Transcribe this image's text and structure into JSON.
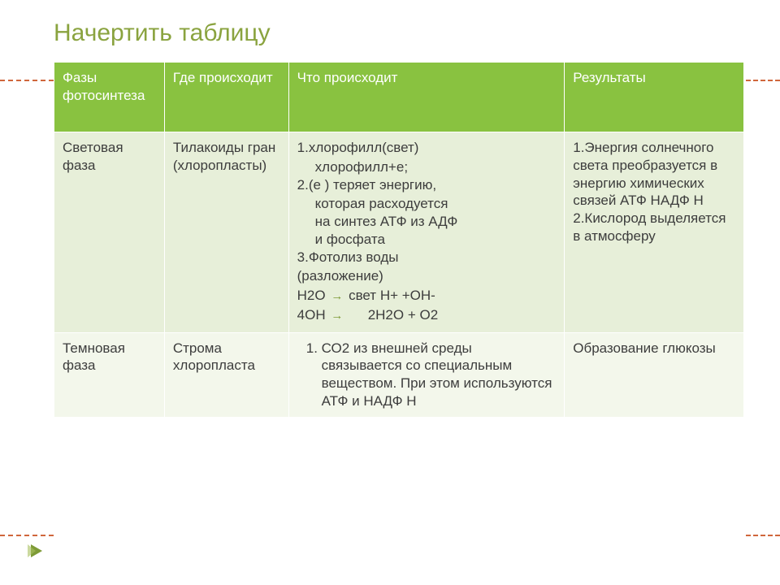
{
  "title": "Начертить таблицу",
  "columns": [
    "Фазы фотосинтеза",
    "Где происходит",
    "Что происходит",
    "Результаты"
  ],
  "rows": [
    {
      "phase": "Световая фаза",
      "location": "Тилакоиды гран (хлоропласты)",
      "process": {
        "l1a": "1.хлорофилл(свет)",
        "l1b": "хлорофилл+е;",
        "l2a": "2.(е ) теряет энергию,",
        "l2b": "которая расходуется",
        "l2c": "на  синтез АТФ из АДФ",
        "l2d": "и фосфата",
        "l3a": " 3.Фотолиз воды",
        "l3b": "(разложение)",
        "l4a": " Н2О",
        "l4b": "свет   Н+ +ОН-",
        "l5a": "4ОН",
        "l5b": "2Н2О + О2"
      },
      "result": {
        "r1": "1.Энергия солнечного света преобразуется в энергию химических связей АТФ НАДФ   Н",
        "r2": "2.Кислород выделяется в атмосферу"
      }
    },
    {
      "phase": "Темновая фаза",
      "location": "Строма хлоропласта",
      "process": {
        "t1": "СО2 из внешней среды связывается со специальным веществом. При этом используются АТФ и НАДФ Н"
      },
      "result": "Образование глюкозы"
    }
  ],
  "colors": {
    "header_bg": "#89c240",
    "row1_bg": "#e7efd9",
    "row2_bg": "#f3f7eb",
    "title_color": "#8aa33f",
    "dash_color": "#d0673c"
  }
}
